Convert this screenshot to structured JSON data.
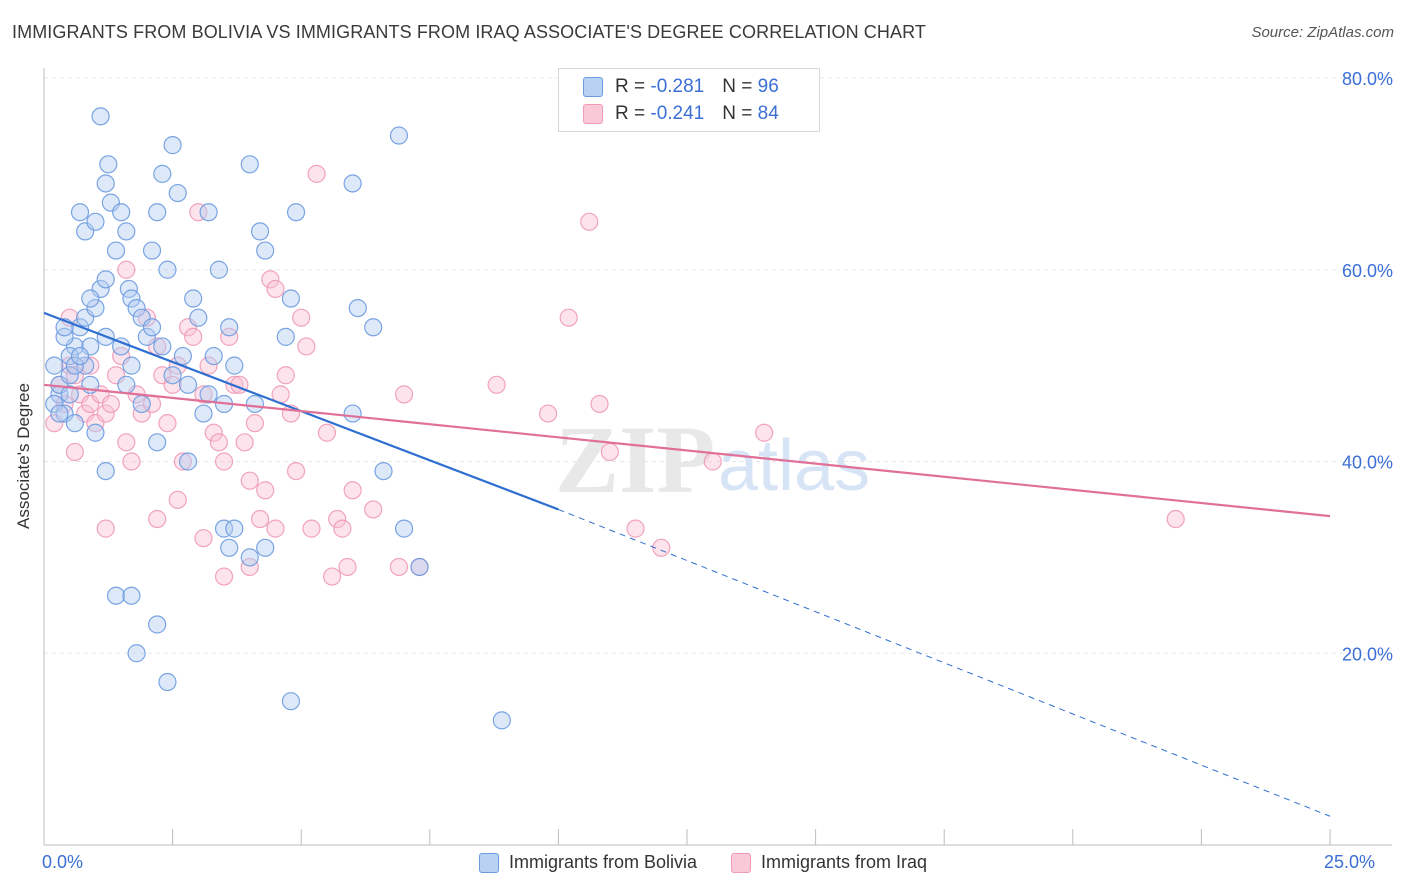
{
  "title": "IMMIGRANTS FROM BOLIVIA VS IMMIGRANTS FROM IRAQ ASSOCIATE'S DEGREE CORRELATION CHART",
  "source": "Source: ZipAtlas.com",
  "colors": {
    "bolivia": "#6b9be0",
    "iraq": "#f09ab6",
    "bolivia_line": "#2e6fd0",
    "iraq_line": "#e07098",
    "axis_text": "#3b6fd6"
  },
  "legend": {
    "rows": [
      {
        "r_label": "R = ",
        "r_value": "-0.281",
        "n_label": "N = ",
        "n_value": "96"
      },
      {
        "r_label": "R = ",
        "r_value": "-0.241",
        "n_label": "N = ",
        "n_value": "84"
      }
    ]
  },
  "watermark": {
    "zip": "ZIP",
    "atlas": "atlas"
  },
  "chart_data": {
    "type": "scatter",
    "ylabel": "Associate's Degree",
    "x_tick_labels": [
      "0.0%",
      "25.0%"
    ],
    "y_tick_labels": [
      "20.0%",
      "40.0%",
      "60.0%",
      "80.0%"
    ],
    "xlim": [
      0,
      25
    ],
    "ylim": [
      0,
      80
    ],
    "y_ticks": [
      20,
      40,
      60,
      80
    ],
    "grid": true,
    "legend_placement": "top-center",
    "series": [
      {
        "name": "Immigrants from Bolivia",
        "color": "#6b9be0",
        "trend": {
          "x": [
            0,
            10
          ],
          "y": [
            55.5,
            35.0
          ],
          "dashed_to": [
            25,
            3.0
          ]
        },
        "points": [
          [
            0.2,
            50
          ],
          [
            0.3,
            47
          ],
          [
            0.2,
            46
          ],
          [
            0.4,
            45
          ],
          [
            0.3,
            48
          ],
          [
            0.5,
            49
          ],
          [
            0.6,
            52
          ],
          [
            0.4,
            53
          ],
          [
            0.5,
            51
          ],
          [
            0.7,
            54
          ],
          [
            0.8,
            50
          ],
          [
            0.9,
            48
          ],
          [
            0.6,
            44
          ],
          [
            0.8,
            55
          ],
          [
            1.0,
            56
          ],
          [
            1.1,
            58
          ],
          [
            0.9,
            57
          ],
          [
            1.2,
            59
          ],
          [
            0.7,
            66
          ],
          [
            0.8,
            64
          ],
          [
            1.0,
            65
          ],
          [
            1.3,
            67
          ],
          [
            1.1,
            76
          ],
          [
            1.2,
            69
          ],
          [
            1.25,
            71
          ],
          [
            1.4,
            62
          ],
          [
            1.5,
            66
          ],
          [
            1.6,
            64
          ],
          [
            1.65,
            58
          ],
          [
            1.7,
            57
          ],
          [
            1.8,
            56
          ],
          [
            1.9,
            55
          ],
          [
            2.0,
            53
          ],
          [
            1.6,
            48
          ],
          [
            1.7,
            50
          ],
          [
            2.1,
            54
          ],
          [
            2.2,
            66
          ],
          [
            2.3,
            70
          ],
          [
            2.1,
            62
          ],
          [
            2.4,
            60
          ],
          [
            2.5,
            73
          ],
          [
            2.6,
            68
          ],
          [
            2.3,
            52
          ],
          [
            2.2,
            42
          ],
          [
            2.7,
            51
          ],
          [
            2.9,
            57
          ],
          [
            3.0,
            55
          ],
          [
            2.8,
            48
          ],
          [
            3.2,
            66
          ],
          [
            3.1,
            45
          ],
          [
            3.4,
            60
          ],
          [
            3.3,
            51
          ],
          [
            3.6,
            54
          ],
          [
            3.5,
            46
          ],
          [
            3.7,
            50
          ],
          [
            4.0,
            71
          ],
          [
            4.1,
            46
          ],
          [
            4.2,
            64
          ],
          [
            4.3,
            62
          ],
          [
            1.2,
            39
          ],
          [
            2.8,
            40
          ],
          [
            3.5,
            33
          ],
          [
            3.6,
            31
          ],
          [
            3.7,
            33
          ],
          [
            1.4,
            26
          ],
          [
            1.7,
            26
          ],
          [
            2.2,
            23
          ],
          [
            1.8,
            20
          ],
          [
            2.4,
            17
          ],
          [
            4.0,
            30
          ],
          [
            4.3,
            31
          ],
          [
            4.9,
            66
          ],
          [
            4.8,
            57
          ],
          [
            4.7,
            53
          ],
          [
            6.0,
            69
          ],
          [
            6.0,
            45
          ],
          [
            6.1,
            56
          ],
          [
            6.4,
            54
          ],
          [
            6.6,
            39
          ],
          [
            6.9,
            74
          ],
          [
            7.0,
            33
          ],
          [
            7.3,
            29
          ],
          [
            4.8,
            15
          ],
          [
            8.9,
            13
          ],
          [
            0.3,
            45
          ],
          [
            0.5,
            47
          ],
          [
            0.6,
            50
          ],
          [
            1.0,
            43
          ],
          [
            1.2,
            53
          ],
          [
            0.9,
            52
          ],
          [
            1.5,
            52
          ],
          [
            1.9,
            46
          ],
          [
            2.5,
            49
          ],
          [
            3.2,
            47
          ],
          [
            0.4,
            54
          ],
          [
            0.7,
            51
          ]
        ]
      },
      {
        "name": "Immigrants from Iraq",
        "color": "#f09ab6",
        "trend": {
          "x": [
            0,
            25
          ],
          "y": [
            48.0,
            34.3
          ]
        },
        "points": [
          [
            0.3,
            48
          ],
          [
            0.4,
            46
          ],
          [
            0.5,
            50
          ],
          [
            0.6,
            49
          ],
          [
            0.7,
            47
          ],
          [
            0.8,
            45
          ],
          [
            0.9,
            46
          ],
          [
            1.0,
            44
          ],
          [
            1.1,
            47
          ],
          [
            1.2,
            45
          ],
          [
            1.3,
            46
          ],
          [
            1.4,
            49
          ],
          [
            1.5,
            51
          ],
          [
            1.6,
            42
          ],
          [
            1.7,
            40
          ],
          [
            1.8,
            47
          ],
          [
            1.9,
            45
          ],
          [
            2.0,
            55
          ],
          [
            2.1,
            46
          ],
          [
            2.2,
            52
          ],
          [
            2.3,
            49
          ],
          [
            2.4,
            44
          ],
          [
            2.5,
            48
          ],
          [
            2.6,
            50
          ],
          [
            2.7,
            40
          ],
          [
            2.8,
            54
          ],
          [
            2.9,
            53
          ],
          [
            3.0,
            66
          ],
          [
            3.1,
            47
          ],
          [
            3.2,
            50
          ],
          [
            3.3,
            43
          ],
          [
            3.4,
            42
          ],
          [
            3.5,
            40
          ],
          [
            3.6,
            53
          ],
          [
            3.7,
            48
          ],
          [
            3.8,
            48
          ],
          [
            3.9,
            42
          ],
          [
            4.0,
            38
          ],
          [
            4.1,
            44
          ],
          [
            4.2,
            34
          ],
          [
            4.3,
            37
          ],
          [
            4.4,
            59
          ],
          [
            4.5,
            58
          ],
          [
            4.6,
            47
          ],
          [
            4.7,
            49
          ],
          [
            4.8,
            45
          ],
          [
            4.9,
            39
          ],
          [
            5.0,
            55
          ],
          [
            5.1,
            52
          ],
          [
            5.2,
            33
          ],
          [
            5.3,
            70
          ],
          [
            5.5,
            43
          ],
          [
            5.6,
            28
          ],
          [
            5.7,
            34
          ],
          [
            5.8,
            33
          ],
          [
            5.9,
            29
          ],
          [
            6.0,
            37
          ],
          [
            6.4,
            35
          ],
          [
            6.9,
            29
          ],
          [
            7.0,
            47
          ],
          [
            7.3,
            29
          ],
          [
            8.8,
            48
          ],
          [
            9.8,
            45
          ],
          [
            10.2,
            55
          ],
          [
            10.6,
            65
          ],
          [
            10.8,
            46
          ],
          [
            11.0,
            41
          ],
          [
            11.5,
            33
          ],
          [
            12.0,
            31
          ],
          [
            13.0,
            40
          ],
          [
            14.0,
            43
          ],
          [
            22.0,
            34
          ],
          [
            0.2,
            44
          ],
          [
            0.5,
            55
          ],
          [
            0.9,
            50
          ],
          [
            1.2,
            33
          ],
          [
            1.6,
            60
          ],
          [
            2.2,
            34
          ],
          [
            2.6,
            36
          ],
          [
            3.1,
            32
          ],
          [
            3.5,
            28
          ],
          [
            4.0,
            29
          ],
          [
            4.5,
            33
          ],
          [
            0.6,
            41
          ]
        ]
      }
    ]
  },
  "bottom_legend": [
    "Immigrants from Bolivia",
    "Immigrants from Iraq"
  ]
}
